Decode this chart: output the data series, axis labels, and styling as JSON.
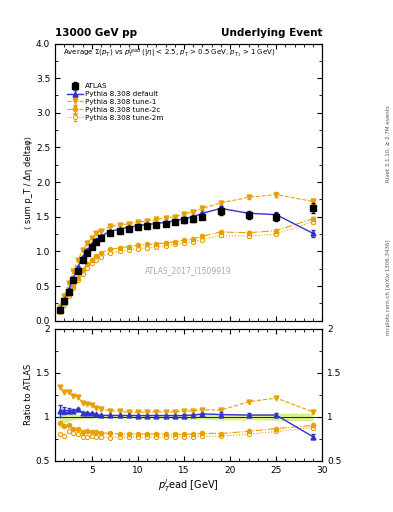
{
  "title_left": "13000 GeV pp",
  "title_right": "Underlying Event",
  "right_label_top": "Rivet 3.1.10, ≥ 2.7M events",
  "right_label_bottom": "mcplots.cern.ch [arXiv:1306.3436]",
  "annotation": "ATLAS_2017_I1509919",
  "ylabel_main": "⟨ sum p_T / Δη deltaφ⟩",
  "ylabel_ratio": "Ratio to ATLAS",
  "xlabel": "p$_T^l$ead [GeV]",
  "ylim_main": [
    0,
    4
  ],
  "ylim_ratio": [
    0.5,
    2
  ],
  "xlim": [
    1,
    30
  ],
  "atlas_x": [
    1.5,
    2.0,
    2.5,
    3.0,
    3.5,
    4.0,
    4.5,
    5.0,
    5.5,
    6.0,
    7.0,
    8.0,
    9.0,
    10.0,
    11.0,
    12.0,
    13.0,
    14.0,
    15.0,
    16.0,
    17.0,
    19.0,
    22.0,
    25.0,
    29.0
  ],
  "atlas_y": [
    0.15,
    0.28,
    0.42,
    0.58,
    0.72,
    0.88,
    0.98,
    1.06,
    1.14,
    1.2,
    1.27,
    1.3,
    1.33,
    1.35,
    1.37,
    1.38,
    1.4,
    1.42,
    1.45,
    1.47,
    1.5,
    1.58,
    1.52,
    1.5,
    1.63
  ],
  "atlas_yerr": [
    0.02,
    0.02,
    0.02,
    0.02,
    0.02,
    0.02,
    0.02,
    0.02,
    0.02,
    0.02,
    0.02,
    0.02,
    0.02,
    0.02,
    0.02,
    0.02,
    0.02,
    0.02,
    0.04,
    0.04,
    0.04,
    0.06,
    0.05,
    0.06,
    0.07
  ],
  "pythia_default_x": [
    1.5,
    2.0,
    2.5,
    3.0,
    3.5,
    4.0,
    4.5,
    5.0,
    5.5,
    6.0,
    7.0,
    8.0,
    9.0,
    10.0,
    11.0,
    12.0,
    13.0,
    14.0,
    15.0,
    16.0,
    17.0,
    19.0,
    22.0,
    25.0,
    29.0
  ],
  "pythia_default_y": [
    0.16,
    0.3,
    0.45,
    0.62,
    0.78,
    0.92,
    1.02,
    1.1,
    1.17,
    1.22,
    1.29,
    1.32,
    1.35,
    1.37,
    1.39,
    1.4,
    1.42,
    1.44,
    1.47,
    1.5,
    1.55,
    1.62,
    1.55,
    1.53,
    1.26
  ],
  "pythia_default_yerr": [
    0.01,
    0.01,
    0.01,
    0.01,
    0.01,
    0.01,
    0.01,
    0.01,
    0.01,
    0.01,
    0.01,
    0.01,
    0.01,
    0.01,
    0.01,
    0.01,
    0.01,
    0.01,
    0.02,
    0.02,
    0.02,
    0.04,
    0.03,
    0.04,
    0.05
  ],
  "pythia_tune1_x": [
    1.5,
    2.0,
    2.5,
    3.0,
    3.5,
    4.0,
    4.5,
    5.0,
    5.5,
    6.0,
    7.0,
    8.0,
    9.0,
    10.0,
    11.0,
    12.0,
    13.0,
    14.0,
    15.0,
    16.0,
    17.0,
    19.0,
    22.0,
    25.0,
    29.0
  ],
  "pythia_tune1_y": [
    0.2,
    0.36,
    0.54,
    0.72,
    0.88,
    1.02,
    1.12,
    1.2,
    1.26,
    1.3,
    1.36,
    1.38,
    1.4,
    1.42,
    1.44,
    1.46,
    1.48,
    1.5,
    1.54,
    1.57,
    1.62,
    1.7,
    1.78,
    1.82,
    1.72
  ],
  "pythia_tune1_yerr": [
    0.01,
    0.01,
    0.01,
    0.01,
    0.01,
    0.01,
    0.01,
    0.01,
    0.01,
    0.01,
    0.01,
    0.01,
    0.01,
    0.01,
    0.01,
    0.01,
    0.01,
    0.01,
    0.02,
    0.02,
    0.02,
    0.03,
    0.03,
    0.03,
    0.04
  ],
  "pythia_tune2c_x": [
    1.5,
    2.0,
    2.5,
    3.0,
    3.5,
    4.0,
    4.5,
    5.0,
    5.5,
    6.0,
    7.0,
    8.0,
    9.0,
    10.0,
    11.0,
    12.0,
    13.0,
    14.0,
    15.0,
    16.0,
    17.0,
    19.0,
    22.0,
    25.0,
    29.0
  ],
  "pythia_tune2c_y": [
    0.14,
    0.25,
    0.38,
    0.5,
    0.62,
    0.73,
    0.82,
    0.88,
    0.94,
    0.98,
    1.03,
    1.05,
    1.07,
    1.09,
    1.1,
    1.11,
    1.12,
    1.14,
    1.16,
    1.18,
    1.22,
    1.28,
    1.27,
    1.3,
    1.47
  ],
  "pythia_tune2c_yerr": [
    0.01,
    0.01,
    0.01,
    0.01,
    0.01,
    0.01,
    0.01,
    0.01,
    0.01,
    0.01,
    0.01,
    0.01,
    0.01,
    0.01,
    0.01,
    0.01,
    0.01,
    0.01,
    0.01,
    0.01,
    0.01,
    0.02,
    0.02,
    0.02,
    0.03
  ],
  "pythia_tune2m_x": [
    1.5,
    2.0,
    2.5,
    3.0,
    3.5,
    4.0,
    4.5,
    5.0,
    5.5,
    6.0,
    7.0,
    8.0,
    9.0,
    10.0,
    11.0,
    12.0,
    13.0,
    14.0,
    15.0,
    16.0,
    17.0,
    19.0,
    22.0,
    25.0,
    29.0
  ],
  "pythia_tune2m_y": [
    0.12,
    0.22,
    0.35,
    0.47,
    0.58,
    0.68,
    0.76,
    0.83,
    0.88,
    0.92,
    0.97,
    1.0,
    1.02,
    1.04,
    1.05,
    1.06,
    1.08,
    1.1,
    1.12,
    1.14,
    1.17,
    1.23,
    1.22,
    1.25,
    1.43
  ],
  "pythia_tune2m_yerr": [
    0.01,
    0.01,
    0.01,
    0.01,
    0.01,
    0.01,
    0.01,
    0.01,
    0.01,
    0.01,
    0.01,
    0.01,
    0.01,
    0.01,
    0.01,
    0.01,
    0.01,
    0.01,
    0.01,
    0.01,
    0.01,
    0.02,
    0.02,
    0.02,
    0.03
  ],
  "color_atlas": "#000000",
  "color_default": "#3333cc",
  "color_orange": "#e8a000",
  "atlas_band_color": "#aadd00",
  "atlas_band_alpha": 0.45
}
